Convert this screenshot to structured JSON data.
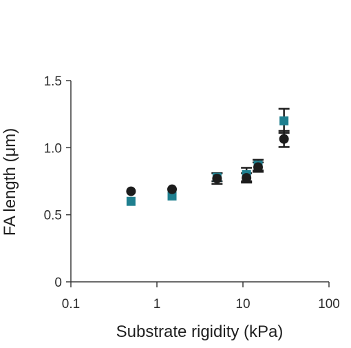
{
  "chart_data": {
    "type": "scatter",
    "title": "",
    "xlabel": "Substrate rigidity (kPa)",
    "ylabel": "FA length (μm)",
    "xscale": "log",
    "xlim": [
      0.1,
      100
    ],
    "ylim": [
      0,
      1.5
    ],
    "xticks": [
      0.1,
      1,
      10,
      100
    ],
    "xtick_labels": [
      "0.1",
      "1",
      "10",
      "100"
    ],
    "yticks": [
      0,
      0.5,
      1.0,
      1.5
    ],
    "ytick_labels": [
      "0",
      "0.5",
      "1.0",
      "1.5"
    ],
    "grid": false,
    "legend": "none",
    "series": [
      {
        "marker": "square",
        "color": "#1f7f8f",
        "points": [
          {
            "x": 0.5,
            "y": 0.6
          },
          {
            "x": 1.5,
            "y": 0.64
          },
          {
            "x": 5,
            "y": 0.78,
            "err": 0.03
          },
          {
            "x": 11,
            "y": 0.8,
            "err": 0.05
          },
          {
            "x": 15,
            "y": 0.87,
            "err": 0.04
          },
          {
            "x": 30,
            "y": 1.2,
            "err": 0.09
          }
        ]
      },
      {
        "marker": "circle",
        "color": "#1c1c1c",
        "points": [
          {
            "x": 0.5,
            "y": 0.675
          },
          {
            "x": 1.5,
            "y": 0.69
          },
          {
            "x": 5,
            "y": 0.77,
            "err": 0.04
          },
          {
            "x": 11,
            "y": 0.775,
            "err": 0.035
          },
          {
            "x": 15,
            "y": 0.855,
            "err": 0.035
          },
          {
            "x": 30,
            "y": 1.065,
            "err": 0.06
          }
        ]
      }
    ]
  }
}
